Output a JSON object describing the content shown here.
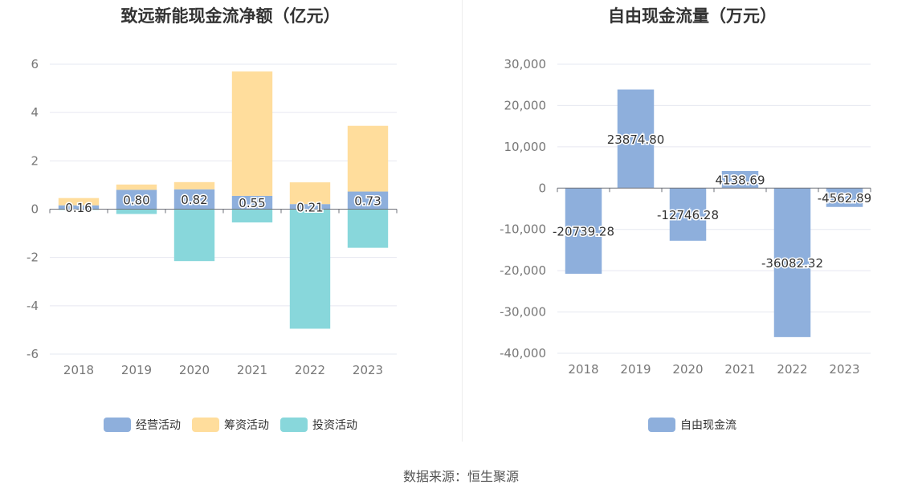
{
  "chart_data": [
    {
      "type": "bar",
      "stacked": true,
      "title": "致远新能现金流净额（亿元）",
      "categories": [
        "2018",
        "2019",
        "2020",
        "2021",
        "2022",
        "2023"
      ],
      "series": [
        {
          "name": "经营活动",
          "color": "#8eafdc",
          "values": [
            0.16,
            0.8,
            0.82,
            0.55,
            0.21,
            0.73
          ],
          "labels": [
            "0.16",
            "0.80",
            "0.82",
            "0.55",
            "0.21",
            "0.73"
          ]
        },
        {
          "name": "筹资活动",
          "color": "#ffdd9c",
          "values": [
            0.3,
            0.22,
            0.3,
            5.15,
            0.9,
            2.72
          ]
        },
        {
          "name": "投资活动",
          "color": "#88d7db",
          "values": [
            -0.03,
            -0.2,
            -2.15,
            -0.55,
            -4.95,
            -1.6
          ]
        }
      ],
      "ylim": [
        -6,
        6
      ],
      "yticks": [
        "-6",
        "-4",
        "-2",
        "0",
        "2",
        "4",
        "6"
      ],
      "legend_position": "bottom",
      "grid": true
    },
    {
      "type": "bar",
      "title": "自由现金流量（万元）",
      "categories": [
        "2018",
        "2019",
        "2020",
        "2021",
        "2022",
        "2023"
      ],
      "series": [
        {
          "name": "自由现金流",
          "color": "#8eafdc",
          "values": [
            -20739.28,
            23874.8,
            -12746.28,
            4138.69,
            -36082.32,
            -4562.89
          ],
          "labels": [
            "-20739.28",
            "23874.80",
            "-12746.28",
            "4138.69",
            "-36082.32",
            "-4562.89"
          ]
        }
      ],
      "ylim": [
        -40000,
        30000
      ],
      "yticks": [
        "-40,000",
        "-30,000",
        "-20,000",
        "-10,000",
        "0",
        "10,000",
        "20,000",
        "30,000"
      ],
      "legend_position": "bottom",
      "grid": true
    }
  ],
  "footer": "数据来源：恒生聚源"
}
